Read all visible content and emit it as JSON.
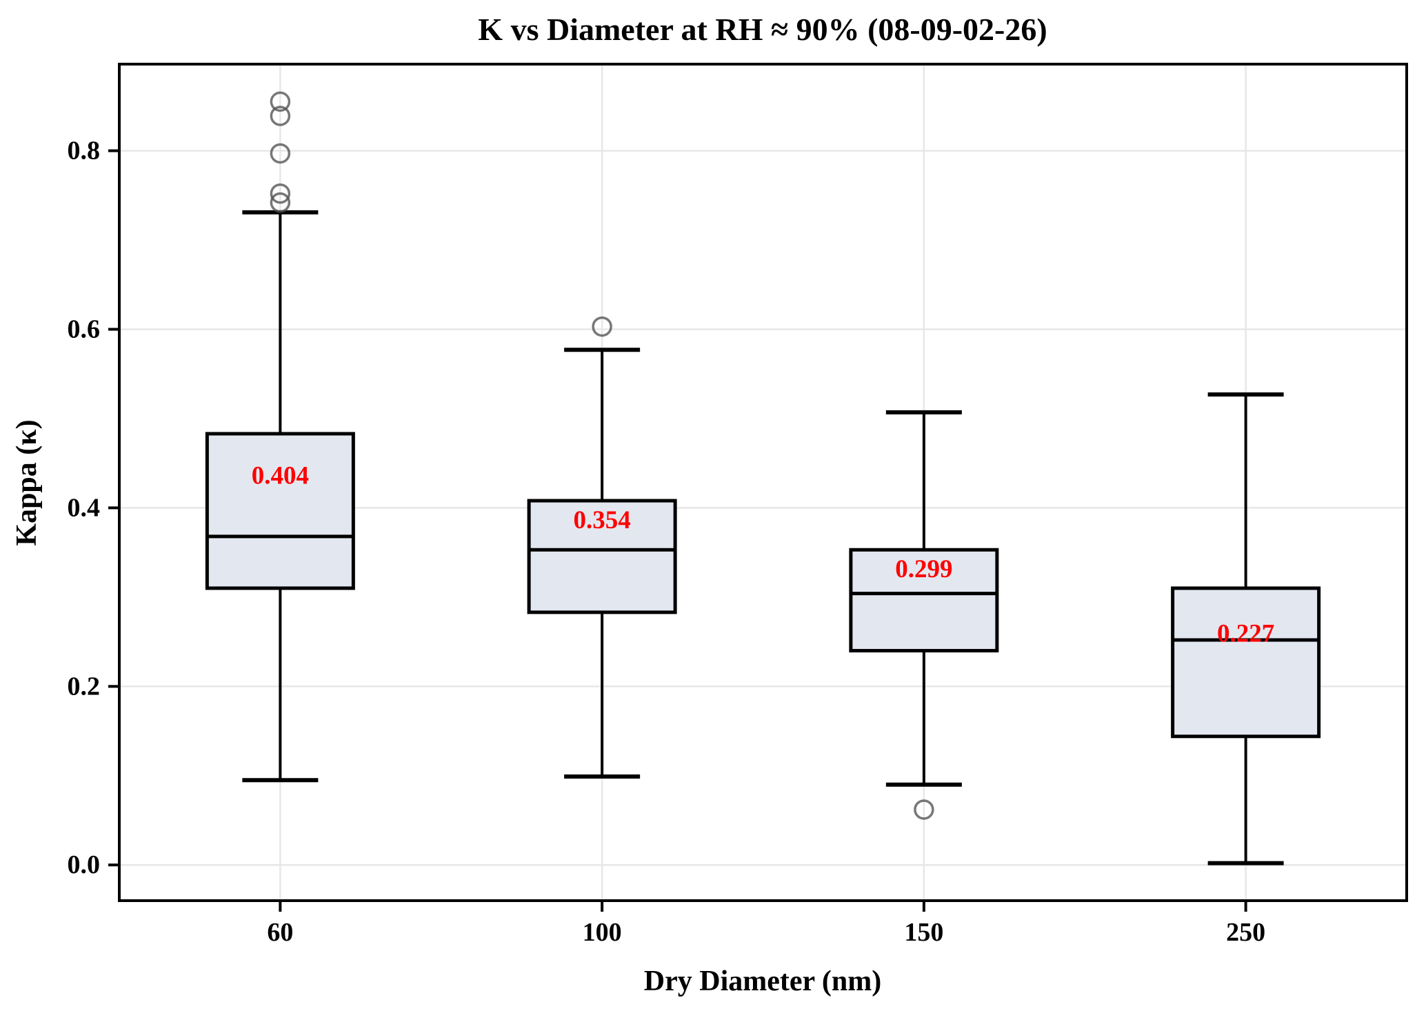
{
  "chart_data": {
    "type": "box",
    "title": "K vs Diameter at RH ≈ 90% (08-09-02-26)",
    "xlabel": "Dry Diameter (nm)",
    "ylabel": "Kappa (κ)",
    "categories": [
      "60",
      "100",
      "150",
      "250"
    ],
    "y_ticks": [
      {
        "label": "0.0",
        "value": 0.0
      },
      {
        "label": "0.2",
        "value": 0.2
      },
      {
        "label": "0.4",
        "value": 0.4
      },
      {
        "label": "0.6",
        "value": 0.6
      },
      {
        "label": "0.8",
        "value": 0.8
      }
    ],
    "ylim": [
      -0.04,
      0.897
    ],
    "grid": true,
    "legend": "none",
    "series": [
      {
        "category": "60",
        "whisker_low": 0.095,
        "q1": 0.31,
        "median": 0.368,
        "q3": 0.483,
        "whisker_high": 0.731,
        "mean_label": "0.404",
        "mean": 0.404,
        "outliers": [
          0.742,
          0.752,
          0.797,
          0.839,
          0.855
        ]
      },
      {
        "category": "100",
        "whisker_low": 0.099,
        "q1": 0.283,
        "median": 0.353,
        "q3": 0.408,
        "whisker_high": 0.577,
        "mean_label": "0.354",
        "mean": 0.354,
        "outliers": [
          0.603
        ]
      },
      {
        "category": "150",
        "whisker_low": 0.09,
        "q1": 0.24,
        "median": 0.304,
        "q3": 0.353,
        "whisker_high": 0.507,
        "mean_label": "0.299",
        "mean": 0.299,
        "outliers": [
          0.062
        ]
      },
      {
        "category": "250",
        "whisker_low": 0.002,
        "q1": 0.144,
        "median": 0.252,
        "q3": 0.31,
        "whisker_high": 0.527,
        "mean_label": "0.227",
        "mean": 0.227,
        "outliers": []
      }
    ],
    "palette": {
      "box_fill": "#e3e7f0",
      "box_edge": "#000000",
      "median_color": "#000000",
      "whisker_color": "#000000",
      "outlier_color": "#555555",
      "mean_label_color": "#ff0000",
      "grid_color": "#e7e7e7",
      "spine_color": "#000000",
      "text_color": "#000000",
      "background": "#ffffff"
    }
  }
}
